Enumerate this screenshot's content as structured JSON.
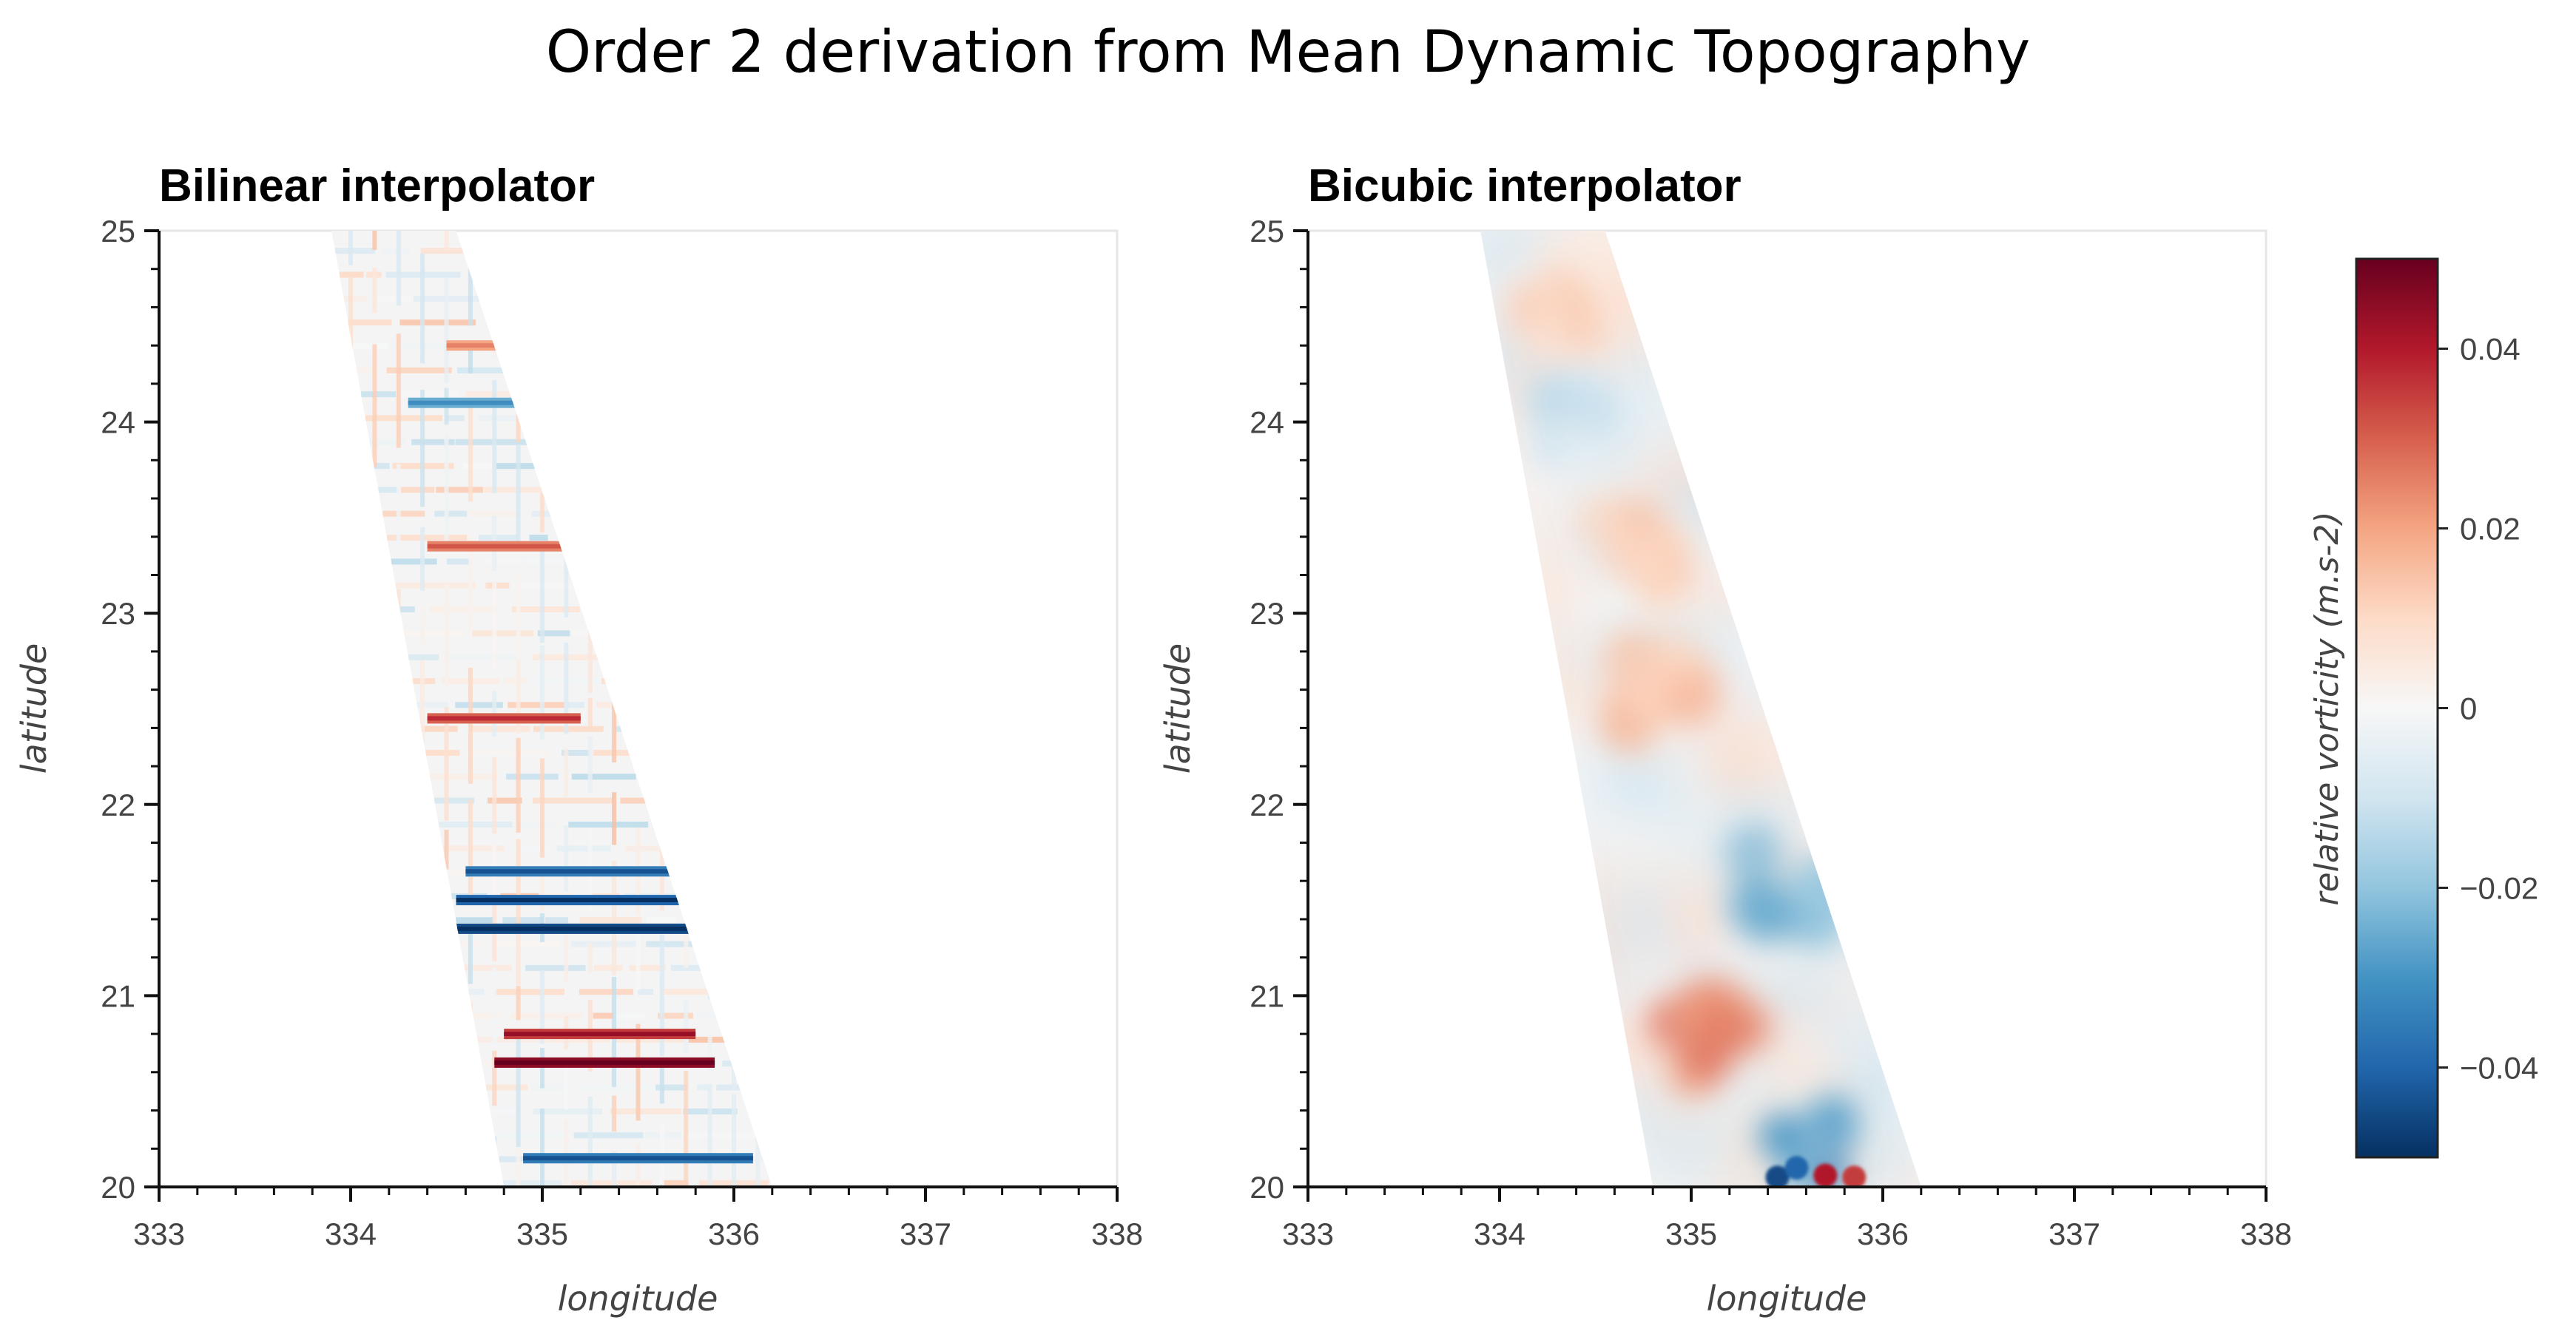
{
  "figure": {
    "title": "Order 2 derivation from Mean Dynamic Topography"
  },
  "colors": {
    "cmap": "RdBu_r",
    "cmap_stops": [
      "#053061",
      "#2166ac",
      "#4393c3",
      "#92c5de",
      "#d1e5f0",
      "#f7f7f7",
      "#fddbc7",
      "#f4a582",
      "#d6604d",
      "#b2182b",
      "#67001f"
    ],
    "axis": "#111111",
    "tick_label": "#444444",
    "frame": "#e6e6e6"
  },
  "chart_data": [
    {
      "type": "heatmap",
      "title": "Bilinear interpolator",
      "xlabel": "longitude",
      "ylabel": "latitude",
      "xlim": [
        333,
        338
      ],
      "ylim": [
        20,
        25
      ],
      "x_ticks": [
        "333",
        "334",
        "335",
        "336",
        "337",
        "338"
      ],
      "y_ticks": [
        "20",
        "21",
        "22",
        "23",
        "24",
        "25"
      ],
      "grid": false,
      "swath": {
        "lat_range": [
          20,
          25
        ],
        "lon_west_edge": [
          334.8,
          333.9
        ],
        "lon_east_edge": [
          336.2,
          334.55
        ]
      },
      "texture": "grid-striped",
      "bands": [
        {
          "lat": 21.35,
          "lon_span": [
            334.55,
            336.05
          ],
          "value": -0.045
        },
        {
          "lat": 21.5,
          "lon_span": [
            334.55,
            336.05
          ],
          "value": -0.04
        },
        {
          "lat": 21.65,
          "lon_span": [
            334.6,
            336.1
          ],
          "value": -0.035
        },
        {
          "lat": 20.65,
          "lon_span": [
            334.75,
            335.9
          ],
          "value": 0.045
        },
        {
          "lat": 20.8,
          "lon_span": [
            334.8,
            335.8
          ],
          "value": 0.035
        },
        {
          "lat": 20.15,
          "lon_span": [
            334.9,
            336.1
          ],
          "value": -0.035
        },
        {
          "lat": 22.45,
          "lon_span": [
            334.4,
            335.2
          ],
          "value": 0.03
        },
        {
          "lat": 23.35,
          "lon_span": [
            334.4,
            335.3
          ],
          "value": 0.025
        },
        {
          "lat": 24.1,
          "lon_span": [
            334.3,
            335.4
          ],
          "value": -0.025
        },
        {
          "lat": 24.4,
          "lon_span": [
            334.5,
            335.3
          ],
          "value": 0.02
        }
      ]
    },
    {
      "type": "heatmap",
      "title": "Bicubic interpolator",
      "xlabel": "longitude",
      "ylabel": "latitude",
      "xlim": [
        333,
        338
      ],
      "ylim": [
        20,
        25
      ],
      "x_ticks": [
        "333",
        "334",
        "335",
        "336",
        "337",
        "338"
      ],
      "y_ticks": [
        "20",
        "21",
        "22",
        "23",
        "24",
        "25"
      ],
      "grid": false,
      "swath": {
        "lat_range": [
          20,
          25
        ],
        "lon_west_edge": [
          334.8,
          333.9
        ],
        "lon_east_edge": [
          336.2,
          334.55
        ]
      },
      "texture": "smooth",
      "regions": [
        {
          "lat": 20.75,
          "lon": 335.1,
          "radius_deg": 0.4,
          "value": 0.025
        },
        {
          "lat": 20.2,
          "lon": 335.6,
          "radius_deg": 0.35,
          "value": -0.03
        },
        {
          "lat": 21.6,
          "lon": 335.5,
          "radius_deg": 0.45,
          "value": -0.022
        },
        {
          "lat": 22.6,
          "lon": 334.9,
          "radius_deg": 0.45,
          "value": 0.015
        },
        {
          "lat": 23.3,
          "lon": 334.7,
          "radius_deg": 0.4,
          "value": 0.013
        },
        {
          "lat": 24.0,
          "lon": 334.4,
          "radius_deg": 0.35,
          "value": -0.012
        },
        {
          "lat": 24.6,
          "lon": 334.3,
          "radius_deg": 0.3,
          "value": 0.012
        }
      ]
    }
  ],
  "colorbar": {
    "label": "relative vorticity (m.s-2)",
    "range": [
      -0.05,
      0.05
    ],
    "ticks": [
      {
        "value": 0.04,
        "label": "0.04"
      },
      {
        "value": 0.02,
        "label": "0.02"
      },
      {
        "value": 0,
        "label": "0"
      },
      {
        "value": -0.02,
        "label": "−0.02"
      },
      {
        "value": -0.04,
        "label": "−0.04"
      }
    ]
  }
}
